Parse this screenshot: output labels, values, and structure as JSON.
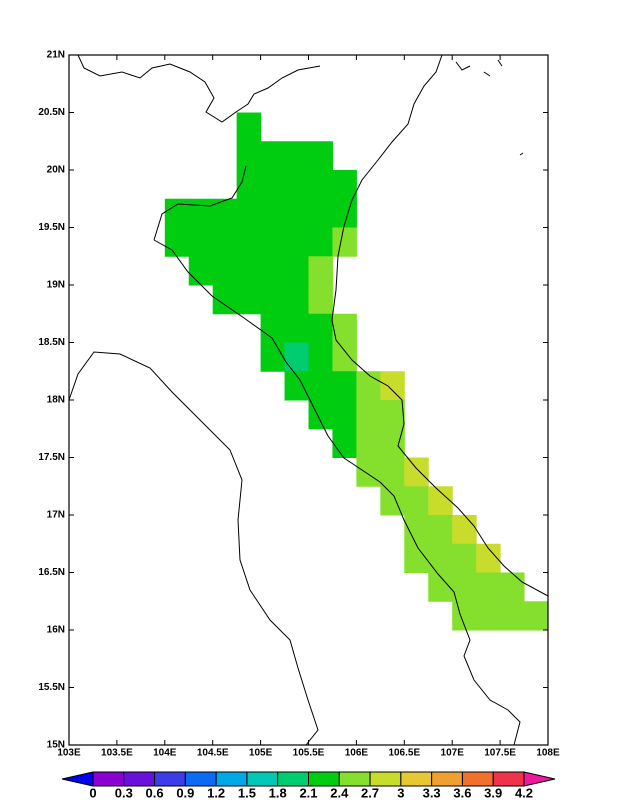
{
  "chart_data": {
    "type": "heatmap",
    "xlim": [
      103,
      108
    ],
    "ylim": [
      15,
      21
    ],
    "xticks": [
      {
        "value": 103,
        "label": "103E"
      },
      {
        "value": 103.5,
        "label": "103.5E"
      },
      {
        "value": 104,
        "label": "104E"
      },
      {
        "value": 104.5,
        "label": "104.5E"
      },
      {
        "value": 105,
        "label": "105E"
      },
      {
        "value": 105.5,
        "label": "105.5E"
      },
      {
        "value": 106,
        "label": "106E"
      },
      {
        "value": 106.5,
        "label": "106.5E"
      },
      {
        "value": 107,
        "label": "107E"
      },
      {
        "value": 107.5,
        "label": "107.5E"
      },
      {
        "value": 108,
        "label": "108E"
      }
    ],
    "yticks": [
      {
        "value": 15,
        "label": "15N"
      },
      {
        "value": 15.5,
        "label": "15.5N"
      },
      {
        "value": 16,
        "label": "16N"
      },
      {
        "value": 16.5,
        "label": "16.5N"
      },
      {
        "value": 17,
        "label": "17N"
      },
      {
        "value": 17.5,
        "label": "17.5N"
      },
      {
        "value": 18,
        "label": "18N"
      },
      {
        "value": 18.5,
        "label": "18.5N"
      },
      {
        "value": 19,
        "label": "19N"
      },
      {
        "value": 19.5,
        "label": "19.5N"
      },
      {
        "value": 20,
        "label": "20N"
      },
      {
        "value": 20.5,
        "label": "20.5N"
      },
      {
        "value": 21,
        "label": "21N"
      }
    ],
    "levels": [
      0,
      0.3,
      0.6,
      0.9,
      1.2,
      1.5,
      1.8,
      2.1,
      2.4,
      2.7,
      3,
      3.3,
      3.6,
      3.9,
      4.2
    ],
    "colors": [
      "#0000f0",
      "#8a00d2",
      "#6a10dc",
      "#3c3ce8",
      "#0a6cf5",
      "#00a8e8",
      "#00c8b4",
      "#00cc70",
      "#00cc10",
      "#84e02c",
      "#c8dc2c",
      "#e6c832",
      "#f0a032",
      "#f0702c",
      "#f0324a",
      "#f0189c"
    ],
    "cells": [
      {
        "lon": 104.75,
        "lat": 20.25,
        "value": 2.25
      },
      {
        "lon": 104.75,
        "lat": 20,
        "value": 2.25
      },
      {
        "lon": 105,
        "lat": 20,
        "value": 2.25
      },
      {
        "lon": 105.25,
        "lat": 20,
        "value": 2.25
      },
      {
        "lon": 105.5,
        "lat": 20,
        "value": 2.25
      },
      {
        "lon": 104.75,
        "lat": 19.75,
        "value": 2.25
      },
      {
        "lon": 105,
        "lat": 19.75,
        "value": 2.25
      },
      {
        "lon": 105.25,
        "lat": 19.75,
        "value": 2.25
      },
      {
        "lon": 105.5,
        "lat": 19.75,
        "value": 2.25
      },
      {
        "lon": 105.75,
        "lat": 19.75,
        "value": 2.25
      },
      {
        "lon": 104,
        "lat": 19.5,
        "value": 2.25
      },
      {
        "lon": 104.25,
        "lat": 19.5,
        "value": 2.25
      },
      {
        "lon": 104.5,
        "lat": 19.5,
        "value": 2.25
      },
      {
        "lon": 104.75,
        "lat": 19.5,
        "value": 2.25
      },
      {
        "lon": 105,
        "lat": 19.5,
        "value": 2.25
      },
      {
        "lon": 105.25,
        "lat": 19.5,
        "value": 2.25
      },
      {
        "lon": 105.5,
        "lat": 19.5,
        "value": 2.25
      },
      {
        "lon": 105.75,
        "lat": 19.5,
        "value": 2.25
      },
      {
        "lon": 104,
        "lat": 19.25,
        "value": 2.25
      },
      {
        "lon": 104.25,
        "lat": 19.25,
        "value": 2.25
      },
      {
        "lon": 104.5,
        "lat": 19.25,
        "value": 2.25
      },
      {
        "lon": 104.75,
        "lat": 19.25,
        "value": 2.25
      },
      {
        "lon": 105,
        "lat": 19.25,
        "value": 2.25
      },
      {
        "lon": 105.25,
        "lat": 19.25,
        "value": 2.25
      },
      {
        "lon": 105.5,
        "lat": 19.25,
        "value": 2.25
      },
      {
        "lon": 105.75,
        "lat": 19.25,
        "value": 2.55
      },
      {
        "lon": 104.25,
        "lat": 19,
        "value": 2.25
      },
      {
        "lon": 104.5,
        "lat": 19,
        "value": 2.25
      },
      {
        "lon": 104.75,
        "lat": 19,
        "value": 2.25
      },
      {
        "lon": 105,
        "lat": 19,
        "value": 2.25
      },
      {
        "lon": 105.25,
        "lat": 19,
        "value": 2.25
      },
      {
        "lon": 105.5,
        "lat": 19,
        "value": 2.55
      },
      {
        "lon": 104.5,
        "lat": 18.75,
        "value": 2.25
      },
      {
        "lon": 104.75,
        "lat": 18.75,
        "value": 2.25
      },
      {
        "lon": 105,
        "lat": 18.75,
        "value": 2.25
      },
      {
        "lon": 105.25,
        "lat": 18.75,
        "value": 2.25
      },
      {
        "lon": 105.5,
        "lat": 18.75,
        "value": 2.55
      },
      {
        "lon": 105,
        "lat": 18.5,
        "value": 2.25
      },
      {
        "lon": 105.25,
        "lat": 18.5,
        "value": 2.25
      },
      {
        "lon": 105.5,
        "lat": 18.5,
        "value": 2.25
      },
      {
        "lon": 105.75,
        "lat": 18.5,
        "value": 2.55
      },
      {
        "lon": 105,
        "lat": 18.25,
        "value": 2.25
      },
      {
        "lon": 105.25,
        "lat": 18.25,
        "value": 1.95
      },
      {
        "lon": 105.5,
        "lat": 18.25,
        "value": 2.25
      },
      {
        "lon": 105.75,
        "lat": 18.25,
        "value": 2.55
      },
      {
        "lon": 105.25,
        "lat": 18,
        "value": 2.25
      },
      {
        "lon": 105.5,
        "lat": 18,
        "value": 2.25
      },
      {
        "lon": 105.75,
        "lat": 18,
        "value": 2.25
      },
      {
        "lon": 106,
        "lat": 18,
        "value": 2.55
      },
      {
        "lon": 106.25,
        "lat": 18,
        "value": 2.85
      },
      {
        "lon": 105.5,
        "lat": 17.75,
        "value": 2.25
      },
      {
        "lon": 105.75,
        "lat": 17.75,
        "value": 2.25
      },
      {
        "lon": 106,
        "lat": 17.75,
        "value": 2.55
      },
      {
        "lon": 106.25,
        "lat": 17.75,
        "value": 2.55
      },
      {
        "lon": 105.75,
        "lat": 17.5,
        "value": 2.25
      },
      {
        "lon": 106,
        "lat": 17.5,
        "value": 2.55
      },
      {
        "lon": 106.25,
        "lat": 17.5,
        "value": 2.55
      },
      {
        "lon": 106,
        "lat": 17.25,
        "value": 2.55
      },
      {
        "lon": 106.25,
        "lat": 17.25,
        "value": 2.55
      },
      {
        "lon": 106.5,
        "lat": 17.25,
        "value": 2.85
      },
      {
        "lon": 106.25,
        "lat": 17,
        "value": 2.55
      },
      {
        "lon": 106.5,
        "lat": 17,
        "value": 2.55
      },
      {
        "lon": 106.75,
        "lat": 17,
        "value": 2.85
      },
      {
        "lon": 106.5,
        "lat": 16.75,
        "value": 2.55
      },
      {
        "lon": 106.75,
        "lat": 16.75,
        "value": 2.55
      },
      {
        "lon": 107,
        "lat": 16.75,
        "value": 2.85
      },
      {
        "lon": 106.5,
        "lat": 16.5,
        "value": 2.55
      },
      {
        "lon": 106.75,
        "lat": 16.5,
        "value": 2.55
      },
      {
        "lon": 107,
        "lat": 16.5,
        "value": 2.55
      },
      {
        "lon": 107.25,
        "lat": 16.5,
        "value": 2.85
      },
      {
        "lon": 106.75,
        "lat": 16.25,
        "value": 2.55
      },
      {
        "lon": 107,
        "lat": 16.25,
        "value": 2.55
      },
      {
        "lon": 107.25,
        "lat": 16.25,
        "value": 2.55
      },
      {
        "lon": 107.5,
        "lat": 16.25,
        "value": 2.55
      },
      {
        "lon": 107,
        "lat": 16,
        "value": 2.55
      },
      {
        "lon": 107.25,
        "lat": 16,
        "value": 2.55
      },
      {
        "lon": 107.5,
        "lat": 16,
        "value": 2.55
      },
      {
        "lon": 107.75,
        "lat": 16,
        "value": 2.55
      }
    ]
  }
}
